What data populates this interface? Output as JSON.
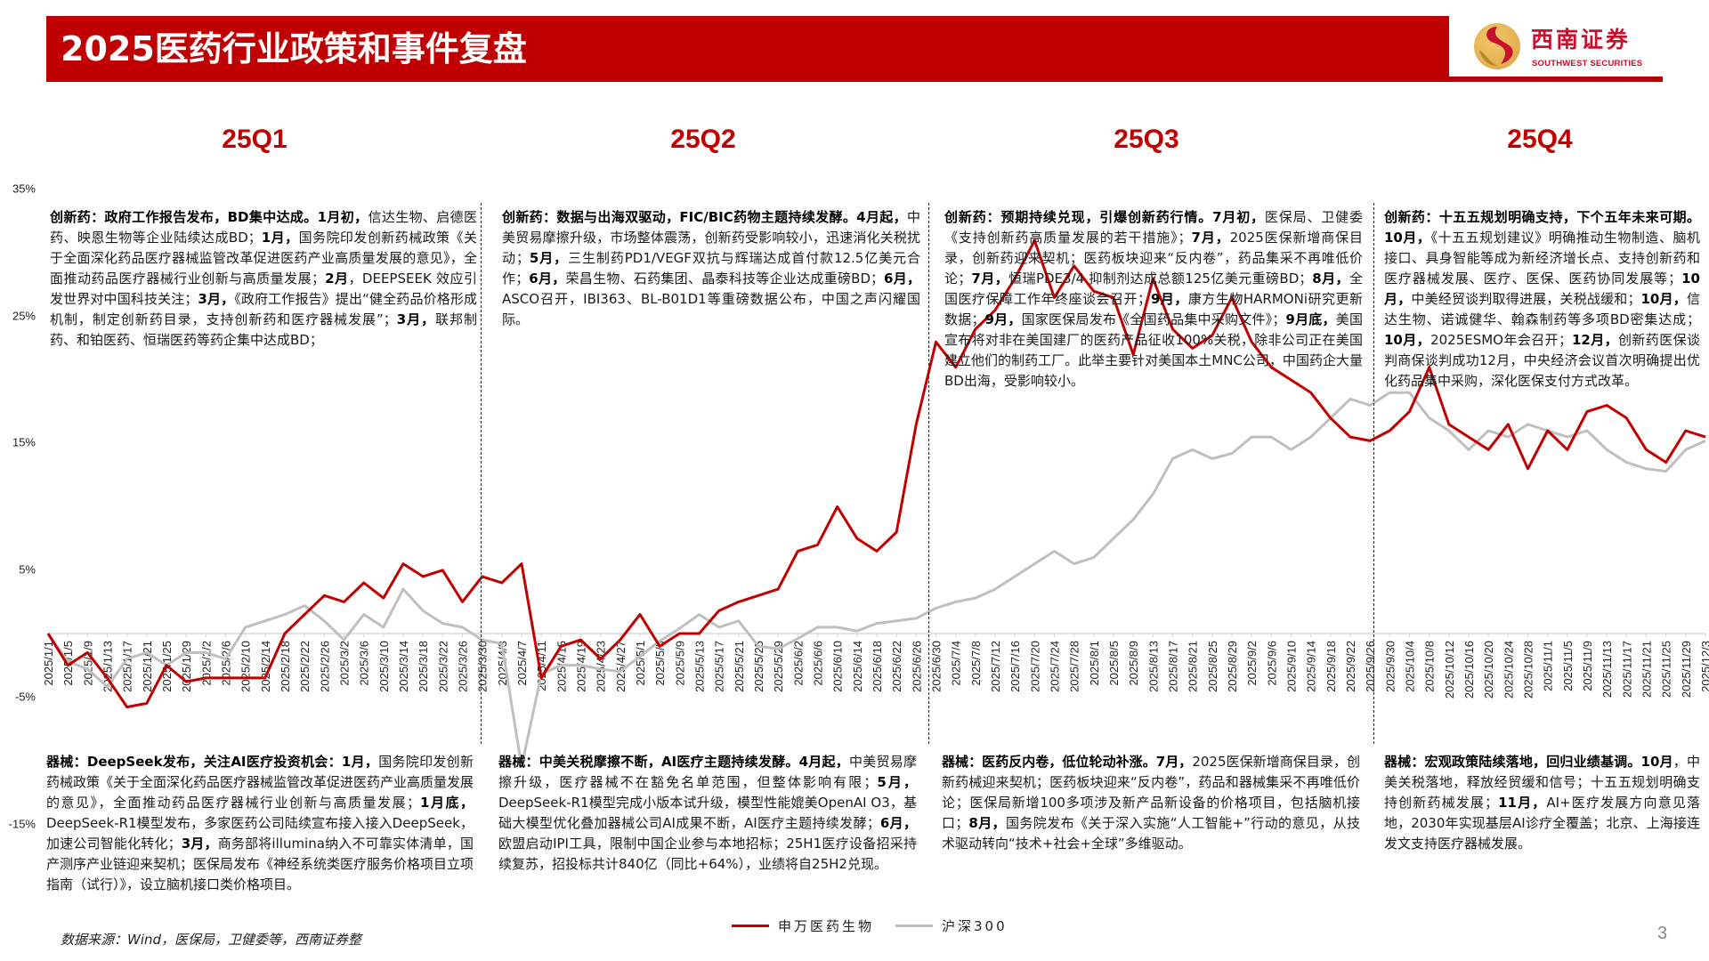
{
  "header": {
    "title": "2025医药行业政策和事件复盘",
    "logo_cn": "西南证券",
    "logo_en": "SOUTHWEST SECURITIES",
    "accent_color": "#c00000"
  },
  "quarters": [
    {
      "label": "25Q1",
      "top_text": [
        {
          "b": "创新药：政府工作报告发布，BD集中达成。1月初，"
        },
        {
          "t": "信达生物、启德医药、映恩生物等企业陆续达成BD；"
        },
        {
          "b": "1月，"
        },
        {
          "t": "国务院印发创新药械政策《关于全面深化药品医疗器械监管改革促进医药产业高质量发展的意见》，全面推动药品医疗器械行业创新与高质量发展；"
        },
        {
          "b": "2月"
        },
        {
          "t": "，DEEPSEEK 效应引发世界对中国科技关注；"
        },
        {
          "b": "3月，"
        },
        {
          "t": "《政府工作报告》提出“健全药品价格形成机制，制定创新药目录，支持创新药和医疗器械发展”；"
        },
        {
          "b": "3月，"
        },
        {
          "t": "联邦制药、和铂医药、恒瑞医药等药企集中达成BD；"
        }
      ],
      "bottom_text": [
        {
          "b": "器械：DeepSeek发布，关注AI医疗投资机会：1月，"
        },
        {
          "t": "国务院印发创新药械政策《关于全面深化药品医疗器械监管改革促进医药产业高质量发展的意见》，全面推动药品医疗器械行业创新与高质量发展；"
        },
        {
          "b": "1月底，"
        },
        {
          "t": "DeepSeek-R1模型发布，多家医药公司陆续宣布接入接入DeepSeek，加速公司智能化转化；"
        },
        {
          "b": "3月，"
        },
        {
          "t": "商务部将illumina纳入不可靠实体清单，国产测序产业链迎来契机；医保局发布《神经系统类医疗服务价格项目立项指南（试行）》，设立脑机接口类价格项目。"
        }
      ]
    },
    {
      "label": "25Q2",
      "top_text": [
        {
          "b": "创新药：数据与出海双驱动，FIC/BIC药物主题持续发酵。4月起，"
        },
        {
          "t": "中美贸易摩擦升级，市场整体震荡，创新药受影响较小，迅速消化关税扰动；"
        },
        {
          "b": "5月，"
        },
        {
          "t": "三生制药PD1/VEGF双抗与辉瑞达成首付款12.5亿美元合作；"
        },
        {
          "b": "6月，"
        },
        {
          "t": "荣昌生物、石药集团、晶泰科技等企业达成重磅BD；"
        },
        {
          "b": "6月，"
        },
        {
          "t": "ASCO召开，IBI363、BL-B01D1等重磅数据公布，中国之声闪耀国际。"
        }
      ],
      "bottom_text": [
        {
          "b": "器械：中美关税摩擦不断，AI医疗主题持续发酵。4月起，"
        },
        {
          "t": "中美贸易摩擦升级，医疗器械不在豁免名单范围，但整体影响有限；"
        },
        {
          "b": "5月，"
        },
        {
          "t": "DeepSeek-R1模型完成小版本试升级，模型性能媲美OpenAI O3，基础大模型优化叠加器械公司AI成果不断，AI医疗主题持续发酵；"
        },
        {
          "b": "6月，"
        },
        {
          "t": "欧盟启动IPI工具，限制中国企业参与本地招标；25H1医疗设备招采持续复苏，招投标共计840亿（同比+64%），业绩将自25H2兑现。"
        }
      ]
    },
    {
      "label": "25Q3",
      "top_text": [
        {
          "b": "创新药：预期持续兑现，引爆创新药行情。7月初，"
        },
        {
          "t": "医保局、卫健委《支持创新药高质量发展的若干措施》；"
        },
        {
          "b": "7月，"
        },
        {
          "t": "2025医保新增商保目录，创新药迎来契机；医药板块迎来“反内卷”，药品集采不再唯低价论；"
        },
        {
          "b": "7月，"
        },
        {
          "t": "恒瑞PDE3/4 抑制剂达成总额125亿美元重磅BD；"
        },
        {
          "b": "8月，"
        },
        {
          "t": "全国医疗保障工作年终座谈会召开；"
        },
        {
          "b": "9月，"
        },
        {
          "t": "康方生物HARMONi研究更新数据；"
        },
        {
          "b": "9月，"
        },
        {
          "t": "国家医保局发布《全国药品集中采购文件》；"
        },
        {
          "b": "9月底，"
        },
        {
          "t": "美国宣布将对非在美国建厂的医药产品征收100%关税，除非公司正在美国建立他们的制药工厂。此举主要针对美国本土MNC公司，中国药企大量BD出海，受影响较小。"
        }
      ],
      "bottom_text": [
        {
          "b": "器械：医药反内卷，低位轮动补涨。7月，"
        },
        {
          "t": "2025医保新增商保目录，创新药械迎来契机；医药板块迎来“反内卷”，药品和器械集采不再唯低价论；医保局新增100多项涉及新产品新设备的价格项目，包括脑机接口；"
        },
        {
          "b": "8月，"
        },
        {
          "t": "国务院发布《关于深入实施“人工智能+”行动的意见，从技术驱动转向“技术+社会+全球”多维驱动。"
        }
      ]
    },
    {
      "label": "25Q4",
      "top_text": [
        {
          "b": "创新药：十五五规划明确支持，下个五年未来可期。10月，"
        },
        {
          "t": "《十五五规划建议》明确推动生物制造、脑机接口、具身智能等成为新经济增长点、支持创新药和医疗器械发展、医疗、医保、医药协同发展等；"
        },
        {
          "b": "10月，"
        },
        {
          "t": "中美经贸谈判取得进展，关税战缓和；"
        },
        {
          "b": "10月，"
        },
        {
          "t": "信达生物、诺诚健华、翰森制药等多项BD密集达成；"
        },
        {
          "b": "10月，"
        },
        {
          "t": "2025ESMO年会召开；"
        },
        {
          "b": "12月，"
        },
        {
          "t": "创新药医保谈判商保谈判成功12月，中央经济会议首次明确提出优化药品集中采购，深化医保支付方式改革。"
        }
      ],
      "bottom_text": [
        {
          "b": "器械：宏观政策陆续落地，回归业绩基调。10月"
        },
        {
          "t": "，中美关税落地，释放经贸缓和信号；十五五规划明确支持创新药械发展；"
        },
        {
          "b": "11月，"
        },
        {
          "t": "AI+医疗发展方向意见落地，2030年实现基层AI诊疗全覆盖；北京、上海接连发文支持医疗器械发展。"
        }
      ]
    }
  ],
  "footer": {
    "source": "数据来源：Wind，医保局，卫健委等，西南证券整",
    "page_number": "3"
  },
  "chart_data": {
    "type": "line",
    "title": "",
    "xlabel": "",
    "ylabel": "",
    "ylim": [
      -15,
      35
    ],
    "y_ticks": [
      "35%",
      "25%",
      "15%",
      "5%",
      "-5%",
      "-15%"
    ],
    "y_tick_values": [
      35,
      25,
      15,
      5,
      -5,
      -15
    ],
    "x_tick_labels": [
      "2025/1/1",
      "2025/1/5",
      "2025/1/9",
      "2025/1/13",
      "2025/1/17",
      "2025/1/21",
      "2025/1/25",
      "2025/1/29",
      "2025/2/2",
      "2025/2/6",
      "2025/2/10",
      "2025/2/14",
      "2025/2/18",
      "2025/2/22",
      "2025/2/26",
      "2025/3/2",
      "2025/3/6",
      "2025/3/10",
      "2025/3/14",
      "2025/3/18",
      "2025/3/22",
      "2025/3/26",
      "2025/3/30",
      "2025/4/3",
      "2025/4/7",
      "2025/4/11",
      "2025/4/15",
      "2025/4/19",
      "2025/4/23",
      "2025/4/27",
      "2025/5/1",
      "2025/5/5",
      "2025/5/9",
      "2025/5/13",
      "2025/5/17",
      "2025/5/21",
      "2025/5/25",
      "2025/5/29",
      "2025/6/2",
      "2025/6/6",
      "2025/6/10",
      "2025/6/14",
      "2025/6/18",
      "2025/6/22",
      "2025/6/26",
      "2025/6/30",
      "2025/7/4",
      "2025/7/8",
      "2025/7/12",
      "2025/7/16",
      "2025/7/20",
      "2025/7/24",
      "2025/7/28",
      "2025/8/1",
      "2025/8/5",
      "2025/8/9",
      "2025/8/13",
      "2025/8/17",
      "2025/8/21",
      "2025/8/25",
      "2025/8/29",
      "2025/9/2",
      "2025/9/6",
      "2025/9/10",
      "2025/9/14",
      "2025/9/18",
      "2025/9/22",
      "2025/9/26",
      "2025/9/30",
      "2025/10/4",
      "2025/10/8",
      "2025/10/12",
      "2025/10/16",
      "2025/10/20",
      "2025/10/24",
      "2025/10/28",
      "2025/11/1",
      "2025/11/5",
      "2025/11/9",
      "2025/11/13",
      "2025/11/17",
      "2025/11/21",
      "2025/11/25",
      "2025/11/29",
      "2025/12/3"
    ],
    "legend_position": "bottom",
    "grid": false,
    "quarter_dividers": [
      "2025/3/30",
      "2025/6/30",
      "2025/9/26"
    ],
    "series": [
      {
        "name": "申万医药生物",
        "color": "#c00000",
        "values": [
          0,
          -2.5,
          -1.5,
          -3.5,
          -5.8,
          -5.5,
          -2.5,
          -3.8,
          -3.5,
          -3.5,
          -3.5,
          -3.5,
          0,
          1.5,
          3,
          2.5,
          4,
          2.8,
          5.5,
          4.5,
          5,
          2.5,
          4.5,
          4,
          5.5,
          -3.5,
          -1,
          -0.5,
          -2,
          -0.5,
          1.5,
          -1,
          0,
          0,
          1.8,
          2.5,
          3,
          3.5,
          6.5,
          7,
          10,
          7.5,
          6.5,
          8,
          16.5,
          23,
          21,
          24,
          25.5,
          28,
          31,
          26.5,
          29,
          27,
          26.5,
          22,
          28,
          24,
          22.5,
          23.5,
          26.5,
          23,
          21,
          20,
          19,
          17,
          15.5,
          15.2,
          16,
          17.5,
          21,
          16.5,
          15.5,
          14.5,
          16.5,
          13,
          16,
          14.5,
          17.5,
          18,
          17,
          14.5,
          13.5,
          16,
          15.5
        ]
      },
      {
        "name": "沪深300",
        "color": "#bfbfbf",
        "values": [
          0,
          -2.2,
          -2.8,
          -4.2,
          -2,
          -1.5,
          -2.5,
          -1.5,
          -1.5,
          -2,
          0.5,
          1,
          1.5,
          2.2,
          1,
          -0.5,
          1.5,
          0.5,
          3.5,
          1.8,
          0.8,
          0.5,
          -0.5,
          -0.8,
          -10.5,
          -3.2,
          -2.5,
          -2.5,
          -2.8,
          -3,
          -1.8,
          -0.6,
          0.4,
          1.5,
          0.5,
          1,
          -1,
          -1.2,
          -0.4,
          0.5,
          0.5,
          0.2,
          0.8,
          1,
          1.2,
          2,
          2.5,
          2.8,
          3.5,
          4.5,
          5.5,
          6.5,
          5.5,
          6,
          7.5,
          9,
          11,
          13.8,
          14.5,
          13.8,
          14.2,
          15.5,
          15.5,
          14.5,
          15.5,
          17,
          18.5,
          18,
          19,
          19,
          17,
          16,
          14.5,
          16,
          15.5,
          16.5,
          16,
          15.5,
          16,
          14.5,
          13.5,
          13,
          12.8,
          14.5,
          15.2
        ]
      }
    ]
  }
}
